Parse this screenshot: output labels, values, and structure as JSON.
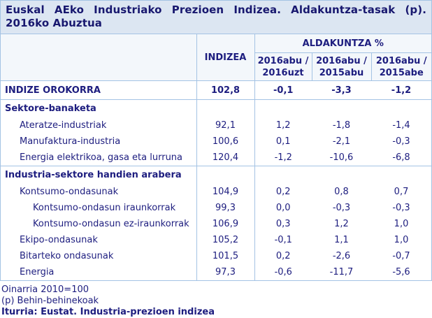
{
  "colors": {
    "text_navy": "#1d1d7f",
    "border_blue": "#a4c3e4",
    "title_background": "#dce6f2",
    "header_background": "#f3f7fb"
  },
  "chart_data": {
    "type": "table",
    "title": "Euskal AEko Industriako Prezioen Indizea. Aldakuntza-tasak (p). 2016ko Abuztua",
    "index_column_header": "INDIZEA",
    "change_group_header": "ALDAKUNTZA %",
    "change_column_headers": [
      "2016abu /\n2016uzt",
      "2016abu /\n2015abu",
      "2016abu /\n2015abe"
    ],
    "rows": [
      {
        "label": "INDIZE OROKORRA",
        "style": "total",
        "values": [
          "102,8",
          "-0,1",
          "-3,3",
          "-1,2"
        ]
      },
      {
        "label": "Sektore-banaketa",
        "style": "section",
        "values": [
          "",
          "",
          "",
          ""
        ]
      },
      {
        "label": "Ateratze-industriak",
        "style": "level1",
        "values": [
          "92,1",
          "1,2",
          "-1,8",
          "-1,4"
        ]
      },
      {
        "label": "Manufaktura-industria",
        "style": "level1",
        "values": [
          "100,6",
          "0,1",
          "-2,1",
          "-0,3"
        ]
      },
      {
        "label": "Energia elektrikoa, gasa eta lurruna",
        "style": "level1",
        "values": [
          "120,4",
          "-1,2",
          "-10,6",
          "-6,8"
        ]
      },
      {
        "label": "Industria-sektore handien arabera",
        "style": "section",
        "values": [
          "",
          "",
          "",
          ""
        ]
      },
      {
        "label": "Kontsumo-ondasunak",
        "style": "level1",
        "values": [
          "104,9",
          "0,2",
          "0,8",
          "0,7"
        ]
      },
      {
        "label": "Kontsumo-ondasun iraunkorrak",
        "style": "level2",
        "values": [
          "99,3",
          "0,0",
          "-0,3",
          "-0,3"
        ]
      },
      {
        "label": "Kontsumo-ondasun ez-iraunkorrak",
        "style": "level2",
        "values": [
          "106,9",
          "0,3",
          "1,2",
          "1,0"
        ]
      },
      {
        "label": "Ekipo-ondasunak",
        "style": "level1",
        "values": [
          "105,2",
          "-0,1",
          "1,1",
          "1,0"
        ]
      },
      {
        "label": "Bitarteko ondasunak",
        "style": "level1",
        "values": [
          "101,5",
          "0,2",
          "-2,6",
          "-0,7"
        ]
      },
      {
        "label": "Energia",
        "style": "level1",
        "values": [
          "97,3",
          "-0,6",
          "-11,7",
          "-5,6"
        ]
      }
    ],
    "footnotes": [
      "Oinarria 2010=100",
      "(p) Behin-behinekoak"
    ],
    "source": "Iturria: Eustat. Industria-prezioen indizea"
  }
}
